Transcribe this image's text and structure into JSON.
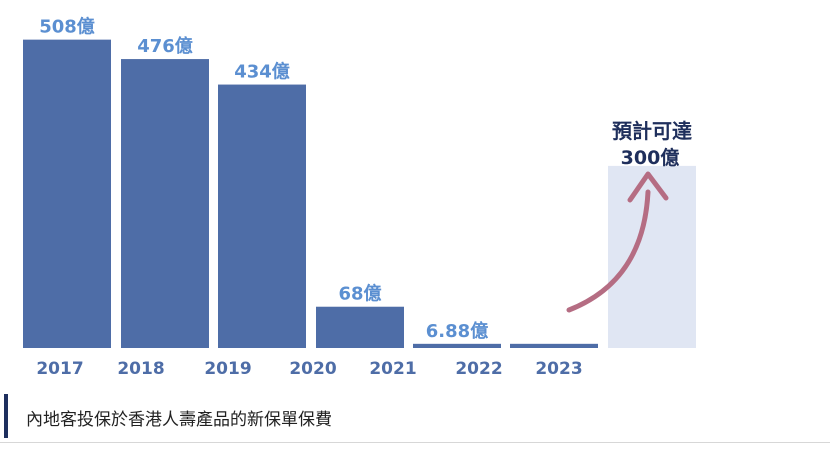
{
  "chart_data": {
    "type": "bar",
    "categories": [
      "2017",
      "2018",
      "2019",
      "2020",
      "2021",
      "2022",
      "2023"
    ],
    "values": [
      508,
      476,
      434,
      68,
      6.88,
      6.88,
      null
    ],
    "data_labels": [
      "508億",
      "476億",
      "434億",
      "68億",
      "6.88億",
      "",
      ""
    ],
    "projection": {
      "value": 300,
      "label_line1": "預計可達",
      "label_line2": "300億"
    },
    "ylim": [
      0,
      520
    ],
    "grid": false,
    "legend": "none",
    "title": "",
    "xlabel": "",
    "ylabel": ""
  },
  "caption": {
    "text": "內地客投保於香港人壽產品的新保單保費"
  },
  "colors": {
    "bar": "#4e6da7",
    "label": "#5b8fd1",
    "tick": "#4e6da7",
    "projection_fill": "#e0e6f3",
    "projection_text": "#1f2f5c",
    "arrow": "#b56d83",
    "caption_accent": "#1e2f5e"
  }
}
